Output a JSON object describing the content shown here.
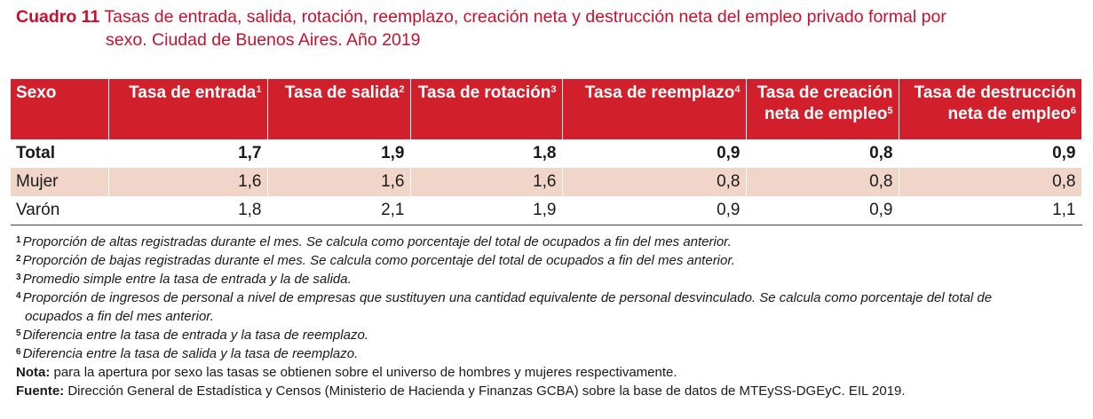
{
  "title": {
    "label": "Cuadro 11",
    "text_line1": "Tasas de entrada, salida, rotación, reemplazo, creación neta y destrucción neta del empleo privado formal por",
    "text_line2": "sexo. Ciudad de Buenos Aires. Año 2019"
  },
  "table": {
    "headers": [
      {
        "l1": "Sexo",
        "l2": "",
        "sup": ""
      },
      {
        "l1": "Tasa de entrada",
        "l2": "",
        "sup": "1"
      },
      {
        "l1": "Tasa de salida",
        "l2": "",
        "sup": "2"
      },
      {
        "l1": "Tasa de rotación",
        "l2": "",
        "sup": "3"
      },
      {
        "l1": "Tasa de reemplazo",
        "l2": "",
        "sup": "4"
      },
      {
        "l1": "Tasa de creación",
        "l2": "neta de empleo",
        "sup": "5"
      },
      {
        "l1": "Tasa de destrucción",
        "l2": "neta de empleo",
        "sup": "6"
      }
    ],
    "rows": [
      [
        "Total",
        "1,7",
        "1,9",
        "1,8",
        "0,9",
        "0,8",
        "0,9"
      ],
      [
        "Mujer",
        "1,6",
        "1,6",
        "1,6",
        "0,8",
        "0,8",
        "0,8"
      ],
      [
        "Varón",
        "1,8",
        "2,1",
        "1,9",
        "0,9",
        "0,9",
        "1,1"
      ]
    ]
  },
  "footnotes": [
    {
      "n": "1",
      "text": "Proporción de altas registradas durante el mes. Se calcula como porcentaje del total de ocupados a fin del mes anterior."
    },
    {
      "n": "2",
      "text": "Proporción de bajas registradas durante el mes. Se calcula como porcentaje del total de ocupados a fin del mes anterior."
    },
    {
      "n": "3",
      "text": "Promedio simple entre la tasa de entrada y la de salida."
    },
    {
      "n": "4",
      "text": "Proporción de ingresos de personal a nivel de empresas que sustituyen una cantidad equivalente de personal desvinculado. Se calcula como porcentaje del total de",
      "text2": "ocupados a fin del mes anterior."
    },
    {
      "n": "5",
      "text": "Diferencia entre la tasa de entrada y la tasa de reemplazo."
    },
    {
      "n": "6",
      "text": "Diferencia entre la tasa de salida y la tasa de reemplazo."
    }
  ],
  "nota": {
    "label": "Nota:",
    "text": "para la apertura por sexo las tasas se obtienen sobre el universo de hombres y mujeres respectivamente."
  },
  "fuente": {
    "label": "Fuente:",
    "text": "Dirección General de Estadística y Censos (Ministerio de Hacienda y Finanzas GCBA) sobre la base de datos de MTEySS-DGEyC. EIL 2019."
  }
}
